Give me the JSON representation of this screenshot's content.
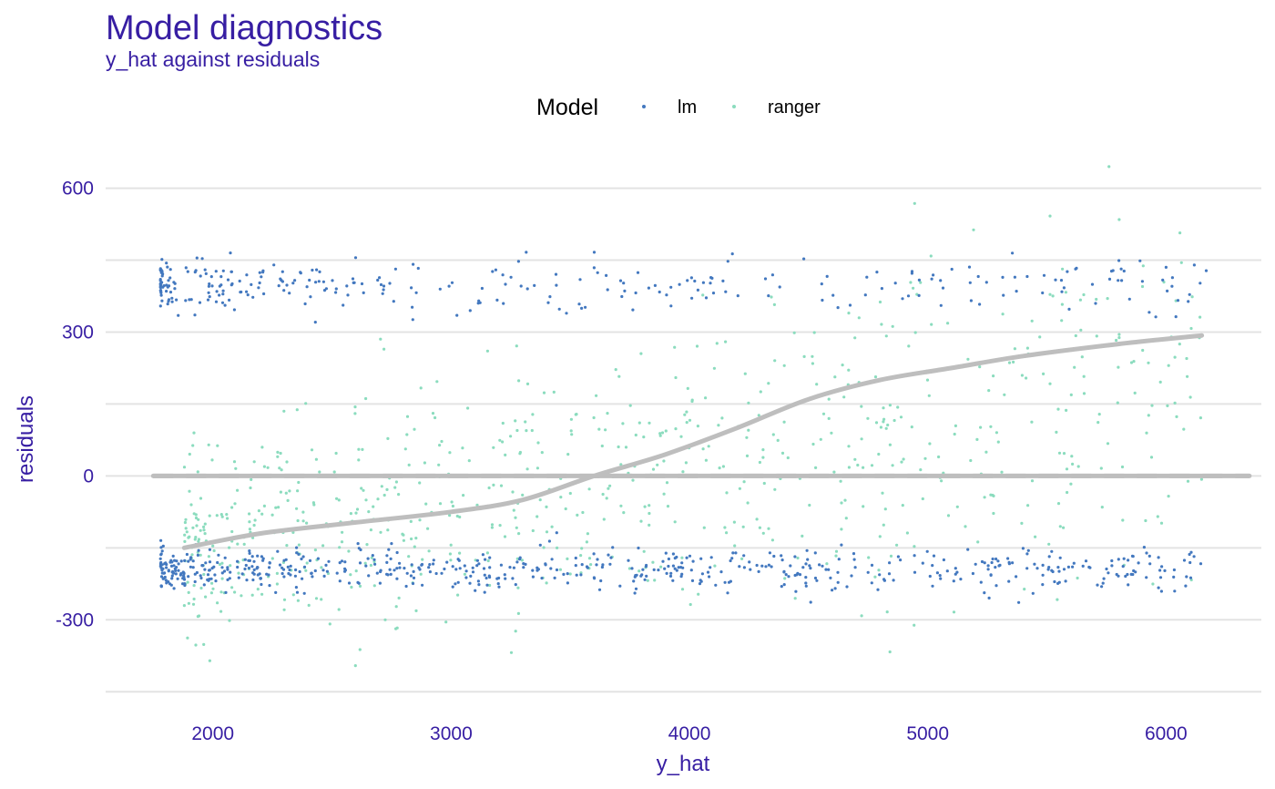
{
  "colors": {
    "title": "#371ea3",
    "grid": "#e3e3e3",
    "lm": "#4378bf",
    "ranger": "#8bdcbe",
    "smooth": "#bebebe",
    "baseline": "#bebebe"
  },
  "chart_data": {
    "type": "scatter",
    "title": "Model diagnostics",
    "subtitle": "y_hat against residuals",
    "xlabel": "y_hat",
    "ylabel": "residuals",
    "xlim": [
      1550,
      6400
    ],
    "ylim": [
      -480,
      660
    ],
    "xticks": [
      2000,
      3000,
      4000,
      5000,
      6000
    ],
    "yticks": [
      -300,
      0,
      300,
      600
    ],
    "y_minor_gridlines": [
      -450,
      -150,
      150,
      450
    ],
    "grid": true,
    "legend": {
      "title": "Model",
      "position": "top",
      "entries": [
        "lm",
        "ranger"
      ]
    },
    "reference_line": {
      "y": 0,
      "style": "dashed",
      "x_range": [
        1750,
        6350
      ]
    },
    "series": [
      {
        "name": "lm",
        "color": "#4378bf",
        "clusters": [
          {
            "x_range": [
              1780,
              6180
            ],
            "y_center": 395,
            "y_spread": 28,
            "n": 300,
            "x_bias": 2.2
          },
          {
            "x_range": [
              1780,
              6180
            ],
            "y_center": -195,
            "y_spread": 22,
            "n": 600,
            "x_bias": 1.6
          }
        ]
      },
      {
        "name": "ranger",
        "color": "#8bdcbe",
        "clusters": [
          {
            "x_range": [
              1880,
              6150
            ],
            "y_center": -25,
            "y_spread": 120,
            "n": 750,
            "x_bias": 1.4
          }
        ]
      }
    ],
    "smooth_curves": [
      {
        "name": "lm",
        "points": [
          [
            1880,
            -150
          ],
          [
            2200,
            -120
          ],
          [
            2600,
            -97
          ],
          [
            3000,
            -75
          ],
          [
            3300,
            -50
          ],
          [
            3600,
            0
          ],
          [
            3900,
            45
          ],
          [
            4200,
            100
          ],
          [
            4500,
            160
          ],
          [
            4800,
            200
          ],
          [
            5100,
            225
          ],
          [
            5400,
            250
          ],
          [
            5800,
            275
          ],
          [
            6150,
            293
          ]
        ]
      },
      {
        "name": "ranger",
        "points": [
          [
            1750,
            0
          ],
          [
            3500,
            0
          ],
          [
            6350,
            0
          ]
        ]
      }
    ]
  }
}
